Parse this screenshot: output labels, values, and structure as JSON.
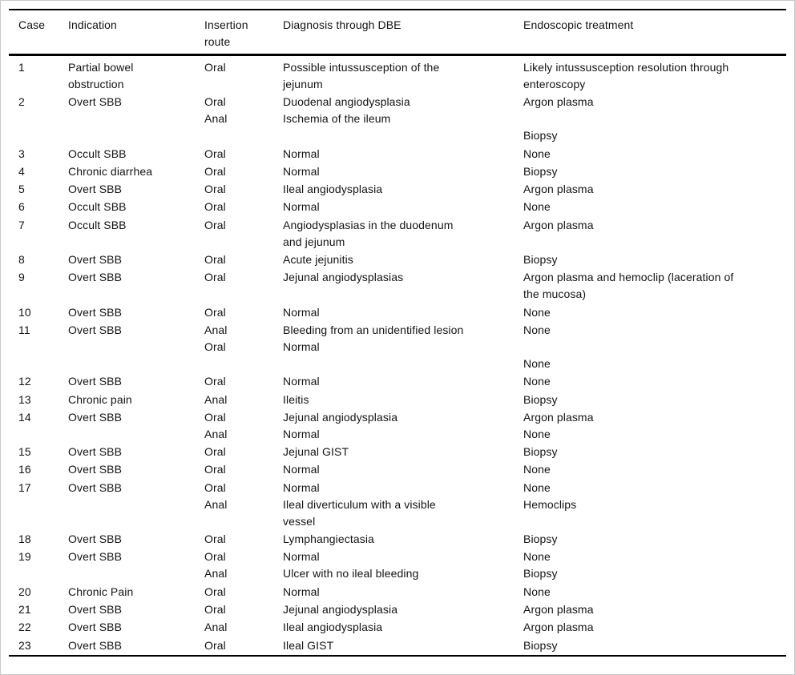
{
  "colors": {
    "background": "#ffffff",
    "text": "#141414",
    "rule": "#000000",
    "frame": "#c9c9c9"
  },
  "table": {
    "columns": [
      {
        "id": "case",
        "label_lines": [
          "Case"
        ]
      },
      {
        "id": "indication",
        "label_lines": [
          "Indication"
        ]
      },
      {
        "id": "route",
        "label_lines": [
          "Insertion",
          "route"
        ]
      },
      {
        "id": "diagnosis",
        "label_lines": [
          "Diagnosis through DBE"
        ]
      },
      {
        "id": "treatment",
        "label_lines": [
          "Endoscopic treatment"
        ]
      }
    ],
    "rows": [
      {
        "case": "1",
        "indication": [
          "Partial bowel",
          "obstruction"
        ],
        "route": [
          "Oral"
        ],
        "diagnosis": [
          "Possible intussusception of the",
          "jejunum"
        ],
        "treatment": [
          "Likely intussusception resolution through",
          "enteroscopy"
        ]
      },
      {
        "case": "2",
        "indication": [
          "Overt SBB"
        ],
        "route": [
          "Oral",
          "Anal"
        ],
        "diagnosis": [
          "Duodenal angiodysplasia",
          "Ischemia of the ileum"
        ],
        "treatment": [
          "Argon plasma",
          "",
          "Biopsy"
        ]
      },
      {
        "case": "3",
        "indication": [
          "Occult SBB"
        ],
        "route": [
          "Oral"
        ],
        "diagnosis": [
          "Normal"
        ],
        "treatment": [
          "None"
        ]
      },
      {
        "case": "4",
        "indication": [
          "Chronic diarrhea"
        ],
        "route": [
          "Oral"
        ],
        "diagnosis": [
          "Normal"
        ],
        "treatment": [
          "Biopsy"
        ]
      },
      {
        "case": "5",
        "indication": [
          "Overt SBB"
        ],
        "route": [
          "Oral"
        ],
        "diagnosis": [
          "Ileal angiodysplasia"
        ],
        "treatment": [
          "Argon plasma"
        ]
      },
      {
        "case": "6",
        "indication": [
          "Occult SBB"
        ],
        "route": [
          "Oral"
        ],
        "diagnosis": [
          "Normal"
        ],
        "treatment": [
          "None"
        ]
      },
      {
        "case": "7",
        "indication": [
          "Occult SBB"
        ],
        "route": [
          "Oral"
        ],
        "diagnosis": [
          "Angiodysplasias in the duodenum",
          "and jejunum"
        ],
        "treatment": [
          "Argon plasma"
        ]
      },
      {
        "case": "8",
        "indication": [
          "Overt SBB"
        ],
        "route": [
          "Oral"
        ],
        "diagnosis": [
          "Acute jejunitis"
        ],
        "treatment": [
          "Biopsy"
        ]
      },
      {
        "case": "9",
        "indication": [
          "Overt SBB"
        ],
        "route": [
          "Oral"
        ],
        "diagnosis": [
          "Jejunal angiodysplasias"
        ],
        "treatment": [
          "Argon plasma and hemoclip (laceration of",
          "the mucosa)"
        ]
      },
      {
        "case": "10",
        "indication": [
          "Overt SBB"
        ],
        "route": [
          "Oral"
        ],
        "diagnosis": [
          "Normal"
        ],
        "treatment": [
          "None"
        ]
      },
      {
        "case": "11",
        "indication": [
          "Overt SBB"
        ],
        "route": [
          "Anal",
          "Oral"
        ],
        "diagnosis": [
          "Bleeding from an unidentified lesion",
          "Normal"
        ],
        "treatment": [
          "None",
          "",
          "None"
        ]
      },
      {
        "case": "12",
        "indication": [
          "Overt SBB"
        ],
        "route": [
          "Oral"
        ],
        "diagnosis": [
          "Normal"
        ],
        "treatment": [
          "None"
        ]
      },
      {
        "case": "13",
        "indication": [
          "Chronic pain"
        ],
        "route": [
          "Anal"
        ],
        "diagnosis": [
          "Ileitis"
        ],
        "treatment": [
          "Biopsy"
        ]
      },
      {
        "case": "14",
        "indication": [
          "Overt SBB"
        ],
        "route": [
          "Oral",
          "Anal"
        ],
        "diagnosis": [
          "Jejunal angiodysplasia",
          "Normal"
        ],
        "treatment": [
          "Argon plasma",
          "None"
        ]
      },
      {
        "case": "15",
        "indication": [
          "Overt SBB"
        ],
        "route": [
          "Oral"
        ],
        "diagnosis": [
          "Jejunal GIST"
        ],
        "treatment": [
          "Biopsy"
        ]
      },
      {
        "case": "16",
        "indication": [
          "Overt SBB"
        ],
        "route": [
          "Oral"
        ],
        "diagnosis": [
          "Normal"
        ],
        "treatment": [
          "None"
        ]
      },
      {
        "case": "17",
        "indication": [
          "Overt SBB"
        ],
        "route": [
          "Oral",
          "Anal"
        ],
        "diagnosis": [
          "Normal",
          "Ileal diverticulum with a visible",
          "vessel"
        ],
        "treatment": [
          "None",
          "Hemoclips"
        ]
      },
      {
        "case": "18",
        "indication": [
          "Overt SBB"
        ],
        "route": [
          "Oral"
        ],
        "diagnosis": [
          "Lymphangiectasia"
        ],
        "treatment": [
          "Biopsy"
        ]
      },
      {
        "case": "19",
        "indication": [
          "Overt SBB"
        ],
        "route": [
          "Oral",
          "Anal"
        ],
        "diagnosis": [
          "Normal",
          "Ulcer with no ileal bleeding"
        ],
        "treatment": [
          "None",
          "Biopsy"
        ]
      },
      {
        "case": "20",
        "indication": [
          "Chronic Pain"
        ],
        "route": [
          "Oral"
        ],
        "diagnosis": [
          "Normal"
        ],
        "treatment": [
          "None"
        ]
      },
      {
        "case": "21",
        "indication": [
          "Overt SBB"
        ],
        "route": [
          "Oral"
        ],
        "diagnosis": [
          "Jejunal angiodysplasia"
        ],
        "treatment": [
          "Argon plasma"
        ]
      },
      {
        "case": "22",
        "indication": [
          "Overt SBB"
        ],
        "route": [
          "Anal"
        ],
        "diagnosis": [
          "Ileal angiodysplasia"
        ],
        "treatment": [
          "Argon plasma"
        ]
      },
      {
        "case": "23",
        "indication": [
          "Overt SBB"
        ],
        "route": [
          "Oral"
        ],
        "diagnosis": [
          "Ileal GIST"
        ],
        "treatment": [
          "Biopsy"
        ]
      }
    ]
  }
}
